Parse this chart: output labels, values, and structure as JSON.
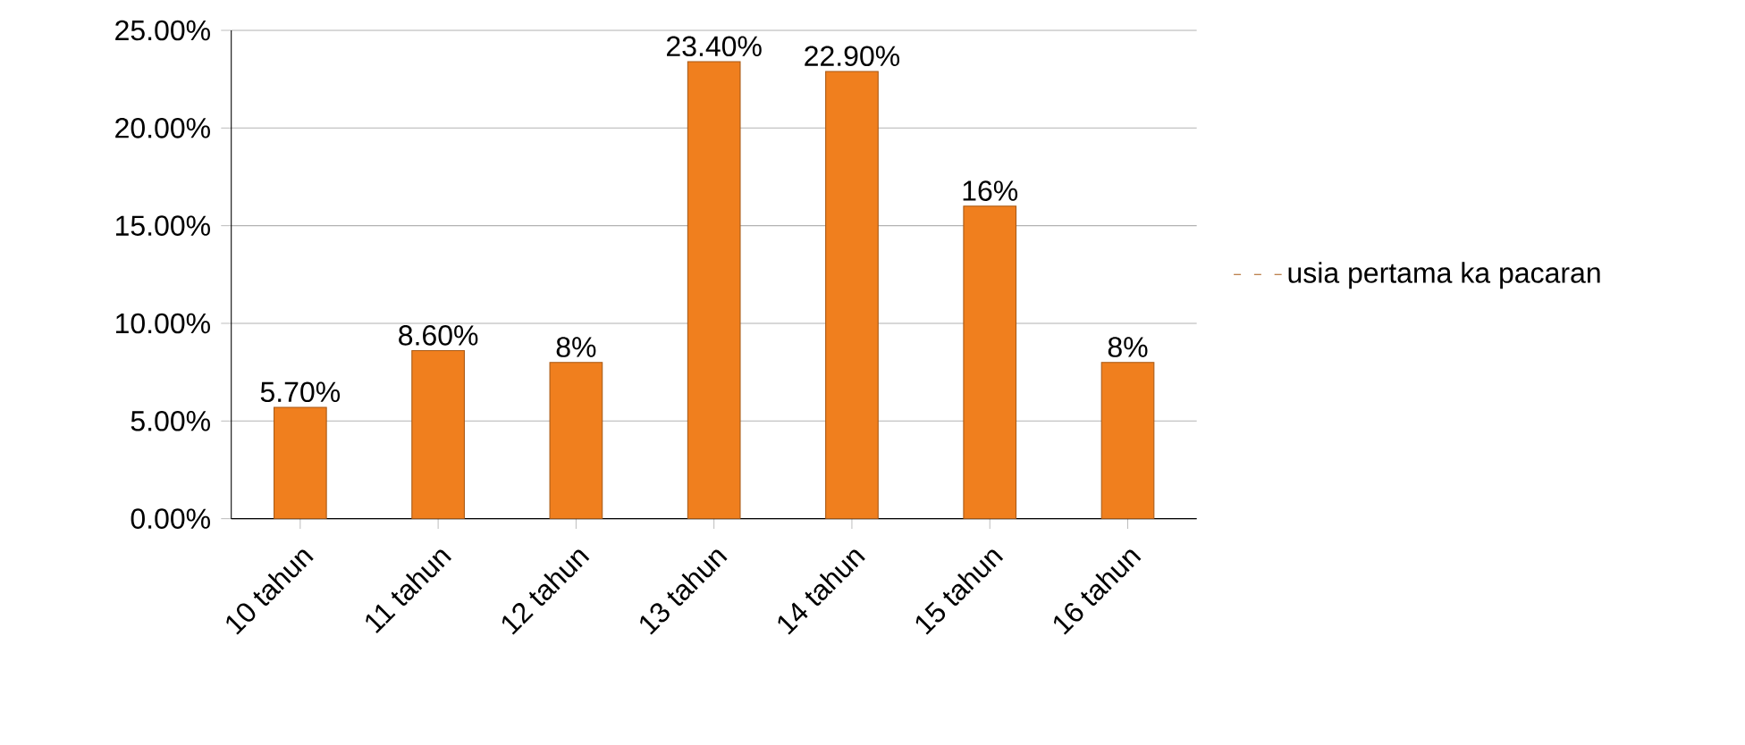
{
  "chart_data": {
    "type": "bar",
    "categories": [
      "10 tahun",
      "11 tahun",
      "12 tahun",
      "13 tahun",
      "14 tahun",
      "15 tahun",
      "16 tahun"
    ],
    "series": [
      {
        "name": "usia pertama ka pacaran",
        "color": "#f07f1e",
        "values": [
          5.7,
          8.6,
          8,
          23.4,
          22.9,
          16,
          8
        ],
        "value_labels": [
          "5.70%",
          "8.60%",
          "8%",
          "23.40%",
          "22.90%",
          "16%",
          "8%"
        ]
      }
    ],
    "ylim": [
      0,
      25
    ],
    "yticks": [
      {
        "value": 0,
        "label": "0.00%"
      },
      {
        "value": 5,
        "label": "5.00%"
      },
      {
        "value": 10,
        "label": "10.00%"
      },
      {
        "value": 15,
        "label": "15.00%"
      },
      {
        "value": 20,
        "label": "20.00%"
      },
      {
        "value": 25,
        "label": "25.00%"
      }
    ],
    "grid": "y",
    "legend": "right"
  }
}
